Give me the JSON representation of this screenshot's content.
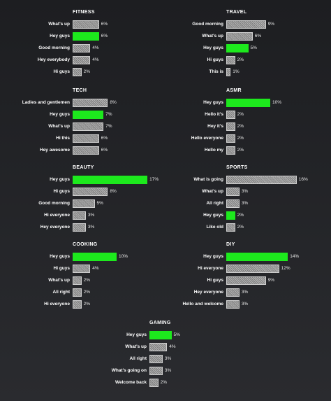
{
  "colors": {
    "highlight": "#1de91d",
    "bar": "#9a9a9a",
    "background": "#222327"
  },
  "chart_data": [
    {
      "type": "bar",
      "orientation": "horizontal",
      "title": "FITNESS",
      "categories": [
        "What's up",
        "Hey guys",
        "Good morning",
        "Hey everybody",
        "Hi guys"
      ],
      "values": [
        6,
        6,
        4,
        4,
        2
      ],
      "value_labels": [
        "6%",
        "6%",
        "4%",
        "4%",
        "2%"
      ],
      "highlight": "Hey guys"
    },
    {
      "type": "bar",
      "orientation": "horizontal",
      "title": "TRAVEL",
      "categories": [
        "Good morning",
        "What's up",
        "Hey guys",
        "Hi guys",
        "This is"
      ],
      "values": [
        9,
        6,
        5,
        2,
        1
      ],
      "value_labels": [
        "9%",
        "6%",
        "5%",
        "2%",
        "1%"
      ],
      "highlight": "Hey guys"
    },
    {
      "type": "bar",
      "orientation": "horizontal",
      "title": "TECH",
      "categories": [
        "Ladies and gentlemen",
        "Hey guys",
        "What's up",
        "Hi this",
        "Hey awesome"
      ],
      "values": [
        8,
        7,
        7,
        6,
        6
      ],
      "value_labels": [
        "8%",
        "7%",
        "7%",
        "6%",
        "6%"
      ],
      "highlight": "Hey guys"
    },
    {
      "type": "bar",
      "orientation": "horizontal",
      "title": "ASMR",
      "categories": [
        "Hey guys",
        "Hello it's",
        "Hey it's",
        "Hello everyone",
        "Hello my"
      ],
      "values": [
        10,
        2,
        2,
        2,
        2
      ],
      "value_labels": [
        "10%",
        "2%",
        "2%",
        "2%",
        "2%"
      ],
      "highlight": "Hey guys"
    },
    {
      "type": "bar",
      "orientation": "horizontal",
      "title": "BEAUTY",
      "categories": [
        "Hey guys",
        "Hi guys",
        "Good morning",
        "Hi everyone",
        "Hey everyone"
      ],
      "values": [
        17,
        8,
        5,
        3,
        3
      ],
      "value_labels": [
        "17%",
        "8%",
        "5%",
        "3%",
        "3%"
      ],
      "highlight": "Hey guys"
    },
    {
      "type": "bar",
      "orientation": "horizontal",
      "title": "SPORTS",
      "categories": [
        "What is going",
        "What's up",
        "All right",
        "Hey guys",
        "Like old"
      ],
      "values": [
        16,
        3,
        3,
        2,
        2
      ],
      "value_labels": [
        "16%",
        "3%",
        "3%",
        "2%",
        "2%"
      ],
      "highlight": "Hey guys"
    },
    {
      "type": "bar",
      "orientation": "horizontal",
      "title": "COOKING",
      "categories": [
        "Hey guys",
        "Hi guys",
        "What's up",
        "All right",
        "Hi everyone"
      ],
      "values": [
        10,
        4,
        2,
        2,
        2
      ],
      "value_labels": [
        "10%",
        "4%",
        "2%",
        "2%",
        "2%"
      ],
      "highlight": "Hey guys"
    },
    {
      "type": "bar",
      "orientation": "horizontal",
      "title": "DIY",
      "categories": [
        "Hey guys",
        "Hi everyone",
        "Hi guys",
        "Hey everyone",
        "Hello and welcome"
      ],
      "values": [
        14,
        12,
        9,
        3,
        3
      ],
      "value_labels": [
        "14%",
        "12%",
        "9%",
        "3%",
        "3%"
      ],
      "highlight": "Hey guys"
    },
    {
      "type": "bar",
      "orientation": "horizontal",
      "title": "GAMING",
      "categories": [
        "Hey guys",
        "What's up",
        "All right",
        "What's going on",
        "Welcome back"
      ],
      "values": [
        5,
        4,
        3,
        3,
        2
      ],
      "value_labels": [
        "5%",
        "4%",
        "3%",
        "3%",
        "2%"
      ],
      "highlight": "Hey guys"
    }
  ]
}
